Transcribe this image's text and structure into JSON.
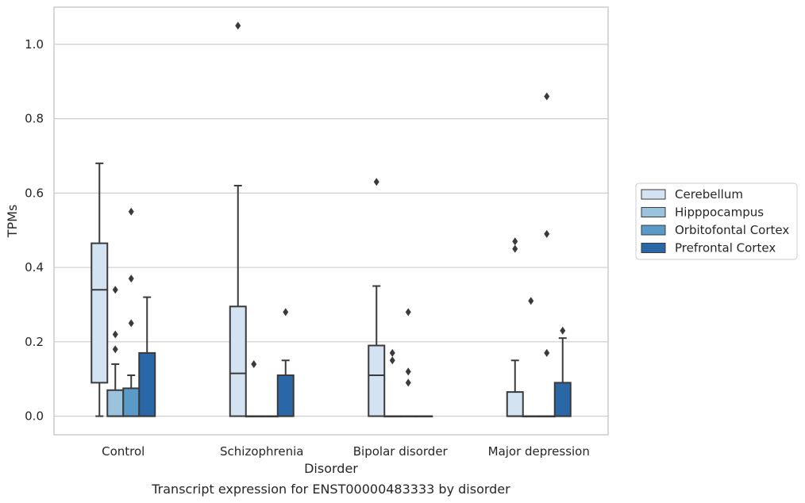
{
  "chart_data": {
    "type": "box",
    "title": "Transcript expression for ENST00000483333 by disorder",
    "xlabel": "Disorder",
    "ylabel": "TPMs",
    "ylim": [
      -0.05,
      1.1
    ],
    "yticks": [
      0.0,
      0.2,
      0.4,
      0.6,
      0.8,
      1.0
    ],
    "ytick_labels": [
      "0.0",
      "0.2",
      "0.4",
      "0.6",
      "0.8",
      "1.0"
    ],
    "grid": "horizontal",
    "legend_position": "right",
    "categories": [
      "Control",
      "Schizophrenia",
      "Bipolar disorder",
      "Major depression"
    ],
    "series": [
      {
        "name": "Cerebellum",
        "color": "#d4e3f1",
        "boxes": [
          {
            "whisker_low": 0.0,
            "q1": 0.09,
            "median": 0.34,
            "q3": 0.465,
            "whisker_high": 0.68,
            "outliers": []
          },
          {
            "whisker_low": 0.0,
            "q1": 0.0,
            "median": 0.115,
            "q3": 0.295,
            "whisker_high": 0.62,
            "outliers": [
              1.05
            ]
          },
          {
            "whisker_low": 0.0,
            "q1": 0.0,
            "median": 0.11,
            "q3": 0.19,
            "whisker_high": 0.35,
            "outliers": [
              0.63
            ]
          },
          {
            "whisker_low": 0.0,
            "q1": 0.0,
            "median": 0.0,
            "q3": 0.065,
            "whisker_high": 0.15,
            "outliers": [
              0.47,
              0.45
            ]
          }
        ]
      },
      {
        "name": "Hipppocampus",
        "color": "#9cc3de",
        "boxes": [
          {
            "whisker_low": 0.0,
            "q1": 0.0,
            "median": 0.0,
            "q3": 0.07,
            "whisker_high": 0.14,
            "outliers": [
              0.34,
              0.22,
              0.18
            ]
          },
          {
            "whisker_low": 0.0,
            "q1": 0.0,
            "median": 0.0,
            "q3": 0.0,
            "whisker_high": 0.0,
            "outliers": [
              0.14
            ]
          },
          {
            "whisker_low": 0.0,
            "q1": 0.0,
            "median": 0.0,
            "q3": 0.0,
            "whisker_high": 0.0,
            "outliers": [
              0.17,
              0.15
            ]
          },
          {
            "whisker_low": 0.0,
            "q1": 0.0,
            "median": 0.0,
            "q3": 0.0,
            "whisker_high": 0.0,
            "outliers": [
              0.31
            ]
          }
        ]
      },
      {
        "name": "Orbitofontal Cortex",
        "color": "#5a9ac8",
        "boxes": [
          {
            "whisker_low": 0.0,
            "q1": 0.0,
            "median": 0.0,
            "q3": 0.075,
            "whisker_high": 0.11,
            "outliers": [
              0.55,
              0.37,
              0.25
            ]
          },
          {
            "whisker_low": 0.0,
            "q1": 0.0,
            "median": 0.0,
            "q3": 0.0,
            "whisker_high": 0.0,
            "outliers": []
          },
          {
            "whisker_low": 0.0,
            "q1": 0.0,
            "median": 0.0,
            "q3": 0.0,
            "whisker_high": 0.0,
            "outliers": [
              0.28,
              0.12,
              0.09
            ]
          },
          {
            "whisker_low": 0.0,
            "q1": 0.0,
            "median": 0.0,
            "q3": 0.0,
            "whisker_high": 0.0,
            "outliers": [
              0.86,
              0.49,
              0.17
            ]
          }
        ]
      },
      {
        "name": "Prefrontal Cortex",
        "color": "#2a67a6",
        "boxes": [
          {
            "whisker_low": 0.0,
            "q1": 0.0,
            "median": 0.0,
            "q3": 0.17,
            "whisker_high": 0.32,
            "outliers": []
          },
          {
            "whisker_low": 0.0,
            "q1": 0.0,
            "median": 0.0,
            "q3": 0.11,
            "whisker_high": 0.15,
            "outliers": [
              0.28
            ]
          },
          {
            "whisker_low": 0.0,
            "q1": 0.0,
            "median": 0.0,
            "q3": 0.0,
            "whisker_high": 0.0,
            "outliers": []
          },
          {
            "whisker_low": 0.0,
            "q1": 0.0,
            "median": 0.0,
            "q3": 0.09,
            "whisker_high": 0.21,
            "outliers": [
              0.23
            ]
          }
        ]
      }
    ]
  }
}
